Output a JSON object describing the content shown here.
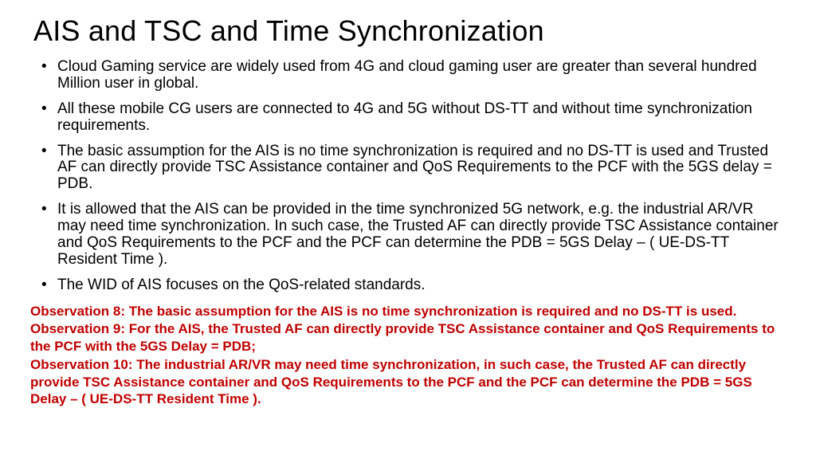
{
  "title": "AIS and TSC and Time Synchronization",
  "title_fontsize": 36,
  "body_fontsize": 19,
  "obs_fontsize": 17,
  "text_color": "#000000",
  "obs_color": "#c00000",
  "background_color": "#ffffff",
  "bullets": [
    "Cloud Gaming service are widely used from 4G and cloud gaming user are greater than several hundred Million user in global.",
    "All these mobile CG users are connected to 4G and 5G without DS-TT and without time synchronization requirements.",
    "The basic assumption for the AIS is no time synchronization is required and no DS-TT is used and Trusted AF can directly provide TSC Assistance container and QoS Requirements to the PCF with the 5GS delay = PDB.",
    "It is allowed that the AIS can be provided in the time synchronized 5G network, e.g. the industrial AR/VR may need time synchronization. In such case,  the Trusted AF can directly provide TSC Assistance container and QoS Requirements to the PCF and the PCF can determine the PDB = 5GS Delay – ( UE-DS-TT Resident Time ).",
    "The WID of AIS focuses on the QoS-related standards."
  ],
  "observations": [
    "Observation 8: The basic assumption for the AIS is no time synchronization is required and no DS-TT is used.",
    "Observation 9: For the AIS, the Trusted AF can directly provide TSC Assistance container and QoS Requirements to the PCF with the 5GS Delay = PDB;",
    "Observation 10: The industrial AR/VR may need time synchronization, in such case,  the Trusted AF can directly provide TSC Assistance container and QoS Requirements to the PCF and the PCF can determine the PDB = 5GS Delay – ( UE-DS-TT Resident Time )."
  ]
}
